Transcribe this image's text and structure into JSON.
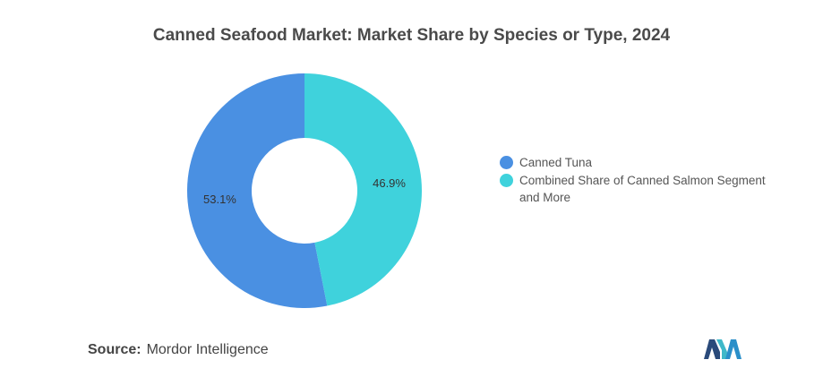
{
  "chart_data": {
    "type": "pie",
    "title": "Canned Seafood Market: Market Share by Species or Type, 2024",
    "categories": [
      "Canned Tuna",
      "Combined Share of Canned Salmon Segment and More"
    ],
    "values": [
      53.1,
      46.9
    ],
    "labels": [
      "53.1%",
      "46.9%"
    ],
    "colors": [
      "#4a90e2",
      "#3fd2dc"
    ],
    "legend_position": "right"
  },
  "source": {
    "label": "Source:",
    "text": "Mordor Intelligence"
  },
  "logo_icon": "mordor-intelligence-logo"
}
